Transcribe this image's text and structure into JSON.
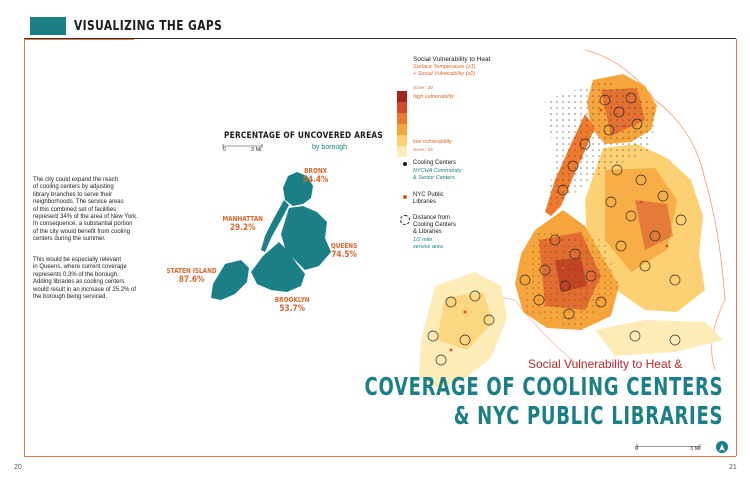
{
  "header": {
    "title": "VISUALIZING THE GAPS"
  },
  "pages": {
    "left": "20",
    "right": "21"
  },
  "body_paragraphs": [
    [
      "The city could expand the reach",
      "of cooling centers by adjusting",
      "library branches to serve their",
      "neighborhoods. The service areas",
      "of this combined set of facilities",
      "represent 34% of the area of New York.",
      "In consequence, a substantial portion",
      "of the city would benefit from cooling",
      "centers during the summer."
    ],
    [
      "This would be especially relevant",
      "in Queens, where current coverage",
      "represents 0.3% of the borough.",
      "Adding libraries as cooling centers",
      "would result in an increase of 25.2% of",
      "the borough being serviced."
    ]
  ],
  "coverage_map": {
    "title": "PERCENTAGE OF UNCOVERED AREAS",
    "subtitle": "by borough",
    "scale": {
      "start": "0",
      "end": "3 Mi"
    },
    "boroughs": [
      {
        "name": "BRONX",
        "value": "54.4%"
      },
      {
        "name": "MANHATTAN",
        "value": "29.2%"
      },
      {
        "name": "QUEENS",
        "value": "74.5%"
      },
      {
        "name": "STATEN ISLAND",
        "value": "87.6%"
      },
      {
        "name": "BROOKLYN",
        "value": "53.7%"
      }
    ],
    "fill_color": "#1a7f86"
  },
  "legend": {
    "title": "Social Vulnerability to Heat",
    "formula_1": "Surface Temperature (z1)",
    "formula_2": "+ Social Vulnerability (z2)",
    "high_score": "score : 20",
    "high_label": "high vulnerability",
    "low_label": "low vulnerability",
    "low_score": "score : 15",
    "swatches": [
      "#a8231c",
      "#d4472a",
      "#ee7a2e",
      "#f6a53c",
      "#fbd173",
      "#fdebb8"
    ],
    "items": [
      {
        "label": "Cooling Centers",
        "sub": [
          "NYCHA Community",
          "& Senior Centers"
        ]
      },
      {
        "label": "NYC Public",
        "label2": "Libraries"
      },
      {
        "label": "Distance from",
        "label2": "Cooling Centers",
        "label3": "& Libraries",
        "sub": [
          "1/2 mile",
          "service area"
        ]
      }
    ]
  },
  "headline": {
    "subtitle": "Social Vulnerability to Heat &",
    "line1": "COVERAGE OF COOLING CENTERS",
    "line2": "& NYC PUBLIC LIBRARIES"
  },
  "map_scale": {
    "start": "0",
    "end": "3 Mi"
  },
  "colors": {
    "accent": "#1a7f86",
    "orange": "#d8662f",
    "red": "#b52a2a"
  }
}
